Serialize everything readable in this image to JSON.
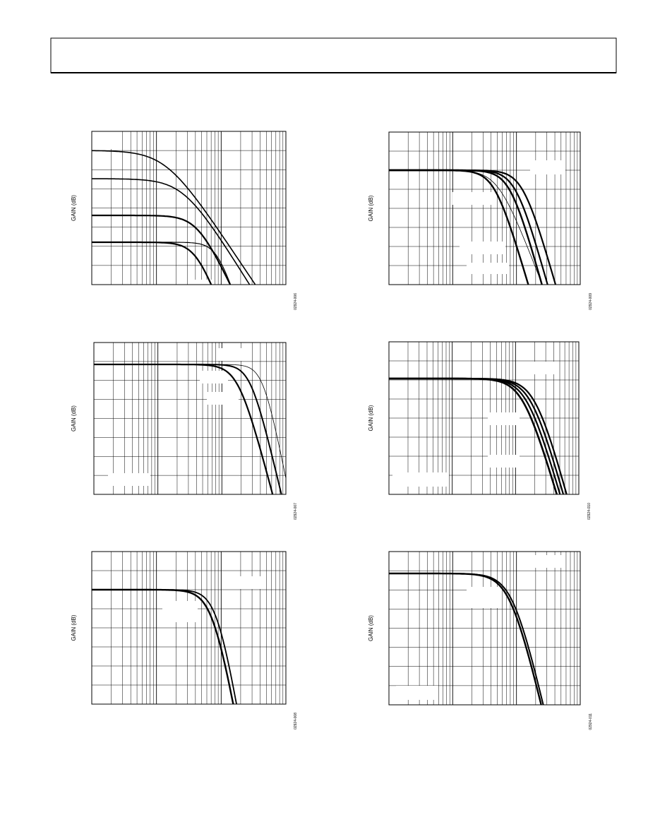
{
  "charts": [
    {
      "y_label": "GAIN (dB)",
      "figure_id": "02924-006"
    },
    {
      "y_label": "GAIN (dB)",
      "figure_id": "02924-009"
    },
    {
      "y_label": "GAIN (dB)",
      "figure_id": "02924-007"
    },
    {
      "y_label": "GAIN (dB)",
      "figure_id": "02924-010"
    },
    {
      "y_label": "GAIN (dB)",
      "figure_id": "02924-008"
    },
    {
      "y_label": "GAIN (dB)",
      "figure_id": "02924-011"
    }
  ]
}
